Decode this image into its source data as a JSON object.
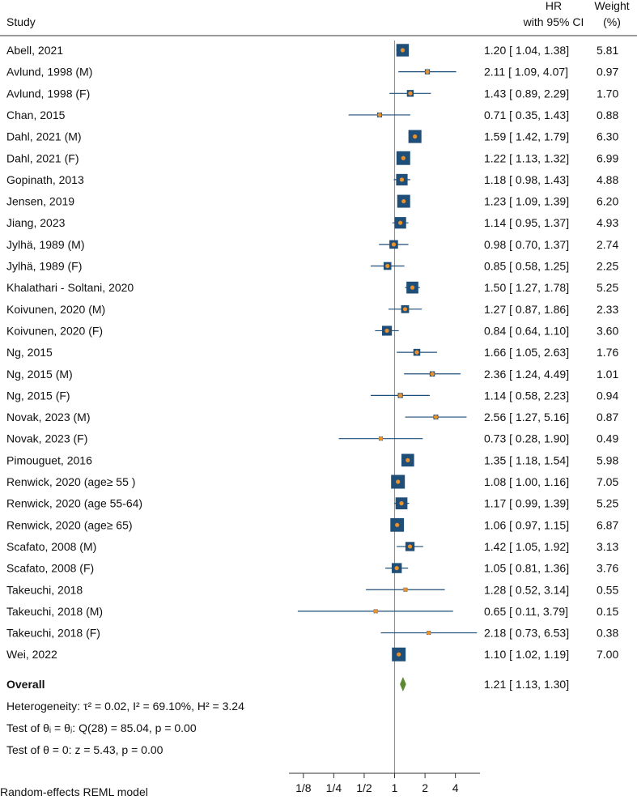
{
  "chart_data": {
    "type": "forest",
    "headers": {
      "study": "Study",
      "effect_line1": "HR",
      "effect_line2": "with 95% CI",
      "weight_line1": "Weight",
      "weight_line2": "(%)"
    },
    "studies": [
      {
        "label": "Abell, 2021",
        "hr": 1.2,
        "lo": 1.04,
        "hi": 1.38,
        "ci_text": "1.20 [ 1.04, 1.38]",
        "weight": 5.81,
        "weight_text": "5.81"
      },
      {
        "label": "Avlund, 1998 (M)",
        "hr": 2.11,
        "lo": 1.09,
        "hi": 4.07,
        "ci_text": "2.11 [ 1.09, 4.07]",
        "weight": 0.97,
        "weight_text": "0.97"
      },
      {
        "label": "Avlund, 1998 (F)",
        "hr": 1.43,
        "lo": 0.89,
        "hi": 2.29,
        "ci_text": "1.43 [ 0.89, 2.29]",
        "weight": 1.7,
        "weight_text": "1.70"
      },
      {
        "label": "Chan, 2015",
        "hr": 0.71,
        "lo": 0.35,
        "hi": 1.43,
        "ci_text": "0.71 [ 0.35, 1.43]",
        "weight": 0.88,
        "weight_text": "0.88"
      },
      {
        "label": "Dahl, 2021 (M)",
        "hr": 1.59,
        "lo": 1.42,
        "hi": 1.79,
        "ci_text": "1.59 [ 1.42, 1.79]",
        "weight": 6.3,
        "weight_text": "6.30"
      },
      {
        "label": "Dahl, 2021 (F)",
        "hr": 1.22,
        "lo": 1.13,
        "hi": 1.32,
        "ci_text": "1.22 [ 1.13, 1.32]",
        "weight": 6.99,
        "weight_text": "6.99"
      },
      {
        "label": "Gopinath, 2013",
        "hr": 1.18,
        "lo": 0.98,
        "hi": 1.43,
        "ci_text": "1.18 [ 0.98, 1.43]",
        "weight": 4.88,
        "weight_text": "4.88"
      },
      {
        "label": "Jensen, 2019",
        "hr": 1.23,
        "lo": 1.09,
        "hi": 1.39,
        "ci_text": "1.23 [ 1.09, 1.39]",
        "weight": 6.2,
        "weight_text": "6.20"
      },
      {
        "label": "Jiang, 2023",
        "hr": 1.14,
        "lo": 0.95,
        "hi": 1.37,
        "ci_text": "1.14 [ 0.95, 1.37]",
        "weight": 4.93,
        "weight_text": "4.93"
      },
      {
        "label": "Jylhä, 1989 (M)",
        "hr": 0.98,
        "lo": 0.7,
        "hi": 1.37,
        "ci_text": "0.98 [ 0.70, 1.37]",
        "weight": 2.74,
        "weight_text": "2.74"
      },
      {
        "label": "Jylhä, 1989 (F)",
        "hr": 0.85,
        "lo": 0.58,
        "hi": 1.25,
        "ci_text": "0.85 [ 0.58, 1.25]",
        "weight": 2.25,
        "weight_text": "2.25"
      },
      {
        "label": "Khalathari - Soltani, 2020",
        "hr": 1.5,
        "lo": 1.27,
        "hi": 1.78,
        "ci_text": "1.50 [ 1.27, 1.78]",
        "weight": 5.25,
        "weight_text": "5.25"
      },
      {
        "label": "Koivunen, 2020 (M)",
        "hr": 1.27,
        "lo": 0.87,
        "hi": 1.86,
        "ci_text": "1.27 [ 0.87, 1.86]",
        "weight": 2.33,
        "weight_text": "2.33"
      },
      {
        "label": "Koivunen, 2020 (F)",
        "hr": 0.84,
        "lo": 0.64,
        "hi": 1.1,
        "ci_text": "0.84 [ 0.64, 1.10]",
        "weight": 3.6,
        "weight_text": "3.60"
      },
      {
        "label": "Ng, 2015",
        "hr": 1.66,
        "lo": 1.05,
        "hi": 2.63,
        "ci_text": "1.66 [ 1.05, 2.63]",
        "weight": 1.76,
        "weight_text": "1.76"
      },
      {
        "label": "Ng, 2015 (M)",
        "hr": 2.36,
        "lo": 1.24,
        "hi": 4.49,
        "ci_text": "2.36 [ 1.24, 4.49]",
        "weight": 1.01,
        "weight_text": "1.01"
      },
      {
        "label": "Ng, 2015 (F)",
        "hr": 1.14,
        "lo": 0.58,
        "hi": 2.23,
        "ci_text": "1.14 [ 0.58, 2.23]",
        "weight": 0.94,
        "weight_text": "0.94"
      },
      {
        "label": "Novak, 2023 (M)",
        "hr": 2.56,
        "lo": 1.27,
        "hi": 5.16,
        "ci_text": "2.56 [ 1.27, 5.16]",
        "weight": 0.87,
        "weight_text": "0.87"
      },
      {
        "label": "Novak, 2023 (F)",
        "hr": 0.73,
        "lo": 0.28,
        "hi": 1.9,
        "ci_text": "0.73 [ 0.28, 1.90]",
        "weight": 0.49,
        "weight_text": "0.49"
      },
      {
        "label": "Pimouguet, 2016",
        "hr": 1.35,
        "lo": 1.18,
        "hi": 1.54,
        "ci_text": "1.35 [ 1.18, 1.54]",
        "weight": 5.98,
        "weight_text": "5.98"
      },
      {
        "label": "Renwick, 2020 (age≥ 55 )",
        "hr": 1.08,
        "lo": 1.0,
        "hi": 1.16,
        "ci_text": "1.08 [ 1.00, 1.16]",
        "weight": 7.05,
        "weight_text": "7.05"
      },
      {
        "label": "Renwick, 2020 (age 55-64)",
        "hr": 1.17,
        "lo": 0.99,
        "hi": 1.39,
        "ci_text": "1.17 [ 0.99, 1.39]",
        "weight": 5.25,
        "weight_text": "5.25"
      },
      {
        "label": "Renwick, 2020 (age≥ 65)",
        "hr": 1.06,
        "lo": 0.97,
        "hi": 1.15,
        "ci_text": "1.06 [ 0.97, 1.15]",
        "weight": 6.87,
        "weight_text": "6.87"
      },
      {
        "label": "Scafato, 2008 (M)",
        "hr": 1.42,
        "lo": 1.05,
        "hi": 1.92,
        "ci_text": "1.42 [ 1.05, 1.92]",
        "weight": 3.13,
        "weight_text": "3.13"
      },
      {
        "label": "Scafato, 2008 (F)",
        "hr": 1.05,
        "lo": 0.81,
        "hi": 1.36,
        "ci_text": "1.05 [ 0.81, 1.36]",
        "weight": 3.76,
        "weight_text": "3.76"
      },
      {
        "label": "Takeuchi, 2018",
        "hr": 1.28,
        "lo": 0.52,
        "hi": 3.14,
        "ci_text": "1.28 [ 0.52, 3.14]",
        "weight": 0.55,
        "weight_text": "0.55"
      },
      {
        "label": "Takeuchi, 2018 (M)",
        "hr": 0.65,
        "lo": 0.11,
        "hi": 3.79,
        "ci_text": "0.65 [ 0.11, 3.79]",
        "weight": 0.15,
        "weight_text": "0.15"
      },
      {
        "label": "Takeuchi, 2018 (F)",
        "hr": 2.18,
        "lo": 0.73,
        "hi": 6.53,
        "ci_text": "2.18 [ 0.73, 6.53]",
        "weight": 0.38,
        "weight_text": "0.38"
      },
      {
        "label": "Wei, 2022",
        "hr": 1.1,
        "lo": 1.02,
        "hi": 1.19,
        "ci_text": "1.10 [ 1.02, 1.19]",
        "weight": 7.0,
        "weight_text": "7.00"
      }
    ],
    "overall": {
      "label": "Overall",
      "hr": 1.21,
      "lo": 1.13,
      "hi": 1.3,
      "ci_text": "1.21 [ 1.13, 1.30]"
    },
    "stats": {
      "heterogeneity": "Heterogeneity: τ² = 0.02, I² = 69.10%, H² = 3.24",
      "test_equal": "Test of θᵢ = θⱼ: Q(28) = 85.04, p = 0.00",
      "test_zero": "Test of θ = 0: z = 5.43, p = 0.00"
    },
    "x_axis": {
      "scale": "log2",
      "range": [
        0.09,
        7.0
      ],
      "ticks": [
        0.125,
        0.25,
        0.5,
        1,
        2,
        4
      ],
      "tick_labels": [
        "1/8",
        "1/4",
        "1/2",
        "1",
        "2",
        "4"
      ],
      "reference_line": 1
    },
    "footnote": "Random-effects REML model",
    "colors": {
      "box": "#1f4e79",
      "point": "#e8912d",
      "ci_line": "#1f4e79",
      "diamond": "#5b8a30",
      "ref_line": "#8c8c8c",
      "axis": "#333333"
    }
  }
}
